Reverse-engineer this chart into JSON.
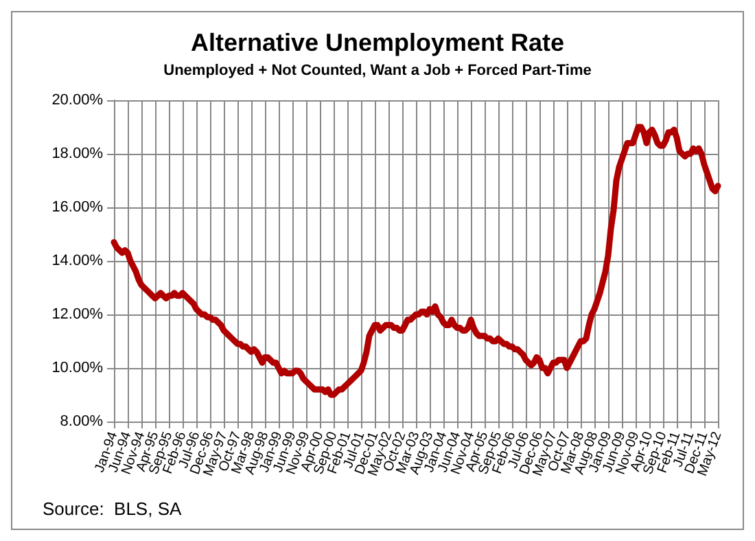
{
  "chart_data": {
    "type": "line",
    "title": "Alternative Unemployment Rate",
    "subtitle": "Unemployed + Not Counted, Want a Job + Forced Part-Time",
    "annotations": [
      "Source:  BLS, SA"
    ],
    "categories": [
      "Jan-94",
      null,
      null,
      null,
      null,
      "Jun-94",
      null,
      null,
      null,
      null,
      "Nov-94",
      null,
      null,
      null,
      null,
      "Apr-95",
      null,
      null,
      null,
      null,
      "Sep-95",
      null,
      null,
      null,
      null,
      "Feb-96",
      null,
      null,
      null,
      null,
      "Jul-96",
      null,
      null,
      null,
      null,
      "Dec-96",
      null,
      null,
      null,
      null,
      "May-97",
      null,
      null,
      null,
      null,
      "Oct-97",
      null,
      null,
      null,
      null,
      "Mar-98",
      null,
      null,
      null,
      null,
      "Aug-98",
      null,
      null,
      null,
      null,
      "Jan-99",
      null,
      null,
      null,
      null,
      "Jun-99",
      null,
      null,
      null,
      null,
      "Nov-99",
      null,
      null,
      null,
      null,
      "Apr-00",
      null,
      null,
      null,
      null,
      "Sep-00",
      null,
      null,
      null,
      null,
      "Feb-01",
      null,
      null,
      null,
      null,
      "Jul-01",
      null,
      null,
      null,
      null,
      "Dec-01",
      null,
      null,
      null,
      null,
      "May-02",
      null,
      null,
      null,
      null,
      "Oct-02",
      null,
      null,
      null,
      null,
      "Mar-03",
      null,
      null,
      null,
      null,
      "Aug-03",
      null,
      null,
      null,
      null,
      "Jan-04",
      null,
      null,
      null,
      null,
      "Jun-04",
      null,
      null,
      null,
      null,
      "Nov-04",
      null,
      null,
      null,
      null,
      "Apr-05",
      null,
      null,
      null,
      null,
      "Sep-05",
      null,
      null,
      null,
      null,
      "Feb-06",
      null,
      null,
      null,
      null,
      "Jul-06",
      null,
      null,
      null,
      null,
      "Dec-06",
      null,
      null,
      null,
      null,
      "May-07",
      null,
      null,
      null,
      null,
      "Oct-07",
      null,
      null,
      null,
      null,
      "Mar-08",
      null,
      null,
      null,
      null,
      "Aug-08",
      null,
      null,
      null,
      null,
      "Jan-09",
      null,
      null,
      null,
      null,
      "Jun-09",
      null,
      null,
      null,
      null,
      "Nov-09",
      null,
      null,
      null,
      null,
      "Apr-10",
      null,
      null,
      null,
      null,
      "Sep-10",
      null,
      null,
      null,
      null,
      "Feb-11",
      null,
      null,
      null,
      null,
      "Jul-11",
      null,
      null,
      null,
      null,
      "Dec-11",
      null,
      null,
      null,
      null,
      "May-12"
    ],
    "series": [
      {
        "color": "#b00000",
        "values": [
          14.7,
          14.5,
          14.4,
          14.3,
          14.4,
          14.3,
          14.0,
          13.8,
          13.6,
          13.3,
          13.1,
          13.0,
          12.9,
          12.8,
          12.7,
          12.6,
          12.7,
          12.8,
          12.7,
          12.6,
          12.7,
          12.7,
          12.8,
          12.7,
          12.7,
          12.8,
          12.7,
          12.6,
          12.5,
          12.4,
          12.2,
          12.1,
          12.0,
          12.0,
          11.9,
          11.9,
          11.8,
          11.8,
          11.7,
          11.6,
          11.4,
          11.3,
          11.2,
          11.1,
          11.0,
          10.9,
          10.9,
          10.8,
          10.8,
          10.7,
          10.6,
          10.7,
          10.6,
          10.4,
          10.2,
          10.4,
          10.4,
          10.3,
          10.2,
          10.2,
          10.0,
          9.8,
          9.9,
          9.8,
          9.8,
          9.8,
          9.9,
          9.9,
          9.8,
          9.6,
          9.5,
          9.4,
          9.3,
          9.2,
          9.2,
          9.2,
          9.2,
          9.1,
          9.2,
          9.0,
          9.0,
          9.1,
          9.2,
          9.2,
          9.3,
          9.4,
          9.5,
          9.6,
          9.7,
          9.8,
          9.9,
          10.2,
          10.6,
          11.2,
          11.4,
          11.6,
          11.6,
          11.4,
          11.5,
          11.6,
          11.6,
          11.6,
          11.5,
          11.5,
          11.4,
          11.4,
          11.6,
          11.8,
          11.8,
          11.9,
          12.0,
          12.0,
          12.1,
          12.1,
          12.0,
          12.2,
          12.1,
          12.3,
          12.0,
          11.9,
          11.7,
          11.6,
          11.6,
          11.8,
          11.6,
          11.5,
          11.5,
          11.4,
          11.4,
          11.5,
          11.8,
          11.5,
          11.3,
          11.2,
          11.2,
          11.2,
          11.1,
          11.1,
          11.0,
          11.0,
          11.1,
          11.0,
          10.9,
          10.9,
          10.8,
          10.8,
          10.7,
          10.7,
          10.6,
          10.5,
          10.3,
          10.2,
          10.1,
          10.2,
          10.4,
          10.3,
          10.0,
          10.0,
          9.8,
          10.0,
          10.2,
          10.2,
          10.3,
          10.3,
          10.3,
          10.0,
          10.2,
          10.4,
          10.6,
          10.8,
          11.0,
          11.0,
          11.1,
          11.6,
          12.0,
          12.2,
          12.5,
          12.8,
          13.2,
          13.6,
          14.2,
          15.2,
          15.9,
          17.0,
          17.5,
          17.8,
          18.1,
          18.4,
          18.4,
          18.4,
          18.7,
          19.0,
          19.0,
          18.8,
          18.4,
          18.8,
          18.9,
          18.7,
          18.4,
          18.3,
          18.3,
          18.5,
          18.8,
          18.8,
          18.9,
          18.6,
          18.1,
          18.0,
          17.9,
          18.0,
          18.0,
          18.2,
          18.1,
          18.2,
          18.0,
          17.6,
          17.3,
          17.0,
          16.7,
          16.6,
          16.8
        ]
      }
    ],
    "ylim": [
      8,
      20
    ],
    "yticks": [
      {
        "value": 8,
        "label": "8.00%"
      },
      {
        "value": 10,
        "label": "10.00%"
      },
      {
        "value": 12,
        "label": "12.00%"
      },
      {
        "value": 14,
        "label": "14.00%"
      },
      {
        "value": 16,
        "label": "16.00%"
      },
      {
        "value": 18,
        "label": "18.00%"
      },
      {
        "value": 20,
        "label": "20.00%"
      }
    ],
    "grid": true,
    "marker": "none",
    "line_style": "solid"
  }
}
